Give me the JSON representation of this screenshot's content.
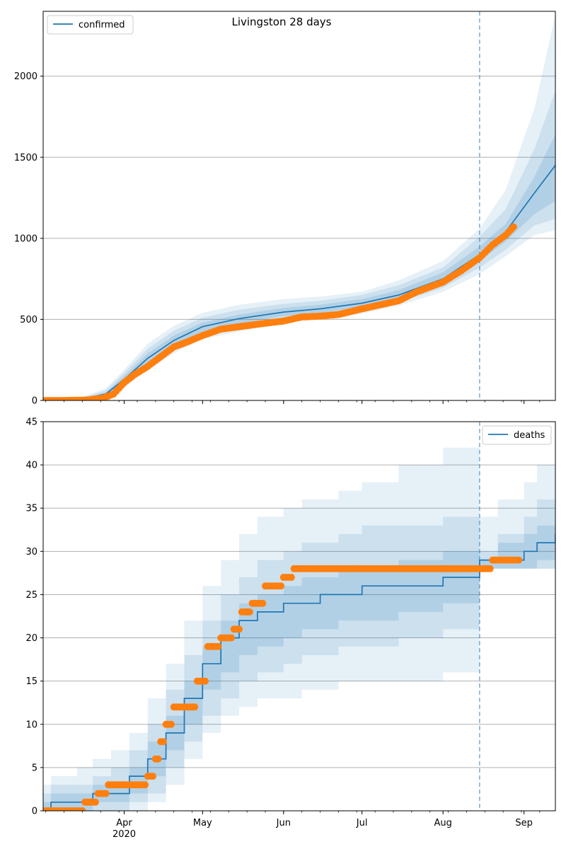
{
  "title": "Livingston 28 days",
  "colors": {
    "model": "#1f77b4",
    "observed": "#ff7f0e",
    "grid": "#b0b0b0",
    "band": "#1f77b4"
  },
  "x_axis": {
    "type": "date",
    "range": [
      "2020-03-01",
      "2020-09-13"
    ],
    "ticks": [
      {
        "date": "2020-04-01",
        "label": "Apr"
      },
      {
        "date": "2020-05-01",
        "label": "May"
      },
      {
        "date": "2020-06-01",
        "label": "Jun"
      },
      {
        "date": "2020-07-01",
        "label": "Jul"
      },
      {
        "date": "2020-08-01",
        "label": "Aug"
      },
      {
        "date": "2020-09-01",
        "label": "Sep"
      }
    ],
    "year_label": "2020",
    "forecast_start": "2020-08-15"
  },
  "chart_data": [
    {
      "type": "line",
      "legend": "confirmed",
      "legend_position": "top-left",
      "ylim": [
        0,
        2400
      ],
      "yticks": [
        0,
        500,
        1000,
        1500,
        2000
      ],
      "grid": true,
      "model": {
        "x": [
          "2020-03-01",
          "2020-03-15",
          "2020-03-25",
          "2020-04-01",
          "2020-04-10",
          "2020-04-20",
          "2020-05-01",
          "2020-05-15",
          "2020-06-01",
          "2020-06-15",
          "2020-07-01",
          "2020-07-15",
          "2020-08-01",
          "2020-08-15",
          "2020-08-25",
          "2020-09-05",
          "2020-09-13"
        ],
        "median": [
          0,
          5,
          40,
          130,
          260,
          370,
          455,
          505,
          545,
          565,
          600,
          650,
          750,
          900,
          1040,
          1280,
          1450
        ],
        "band_50": [
          [
            0,
            3,
            30,
            110,
            230,
            340,
            425,
            475,
            520,
            540,
            575,
            625,
            720,
            860,
            980,
            1150,
            1230
          ],
          [
            0,
            8,
            50,
            150,
            290,
            400,
            480,
            530,
            570,
            590,
            625,
            680,
            790,
            950,
            1090,
            1380,
            1640
          ]
        ],
        "band_80": [
          [
            0,
            2,
            22,
            95,
            205,
            315,
            400,
            450,
            500,
            520,
            555,
            605,
            695,
            820,
            930,
            1080,
            1120
          ],
          [
            0,
            11,
            62,
            170,
            320,
            430,
            510,
            560,
            595,
            615,
            650,
            710,
            820,
            1010,
            1180,
            1550,
            1910
          ]
        ],
        "band_95": [
          [
            0,
            1,
            15,
            80,
            185,
            290,
            380,
            425,
            480,
            500,
            535,
            585,
            670,
            780,
            890,
            1020,
            1050
          ],
          [
            0,
            15,
            75,
            190,
            350,
            460,
            540,
            590,
            625,
            640,
            670,
            740,
            860,
            1060,
            1300,
            1800,
            2380
          ]
        ]
      },
      "observed": {
        "x": [
          "2020-03-01",
          "2020-03-10",
          "2020-03-18",
          "2020-03-24",
          "2020-03-28",
          "2020-04-01",
          "2020-04-05",
          "2020-04-10",
          "2020-04-15",
          "2020-04-20",
          "2020-04-25",
          "2020-05-01",
          "2020-05-08",
          "2020-05-15",
          "2020-05-22",
          "2020-06-01",
          "2020-06-08",
          "2020-06-15",
          "2020-06-22",
          "2020-07-01",
          "2020-07-08",
          "2020-07-15",
          "2020-07-22",
          "2020-08-01",
          "2020-08-08",
          "2020-08-15",
          "2020-08-20",
          "2020-08-25",
          "2020-08-28"
        ],
        "y": [
          0,
          0,
          3,
          15,
          40,
          110,
          160,
          210,
          270,
          330,
          360,
          400,
          440,
          455,
          470,
          490,
          515,
          520,
          530,
          565,
          590,
          615,
          670,
          730,
          800,
          880,
          960,
          1020,
          1070
        ]
      }
    },
    {
      "type": "line",
      "legend": "deaths",
      "legend_position": "top-right",
      "ylim": [
        0,
        45
      ],
      "yticks": [
        0,
        5,
        10,
        15,
        20,
        25,
        30,
        35,
        40,
        45
      ],
      "grid": true,
      "model": {
        "x": [
          "2020-03-01",
          "2020-03-04",
          "2020-03-14",
          "2020-03-20",
          "2020-03-27",
          "2020-04-03",
          "2020-04-10",
          "2020-04-17",
          "2020-04-24",
          "2020-05-01",
          "2020-05-08",
          "2020-05-15",
          "2020-05-22",
          "2020-06-01",
          "2020-06-08",
          "2020-06-15",
          "2020-06-22",
          "2020-07-01",
          "2020-07-15",
          "2020-08-01",
          "2020-08-15",
          "2020-08-22",
          "2020-09-01",
          "2020-09-06",
          "2020-09-13"
        ],
        "median": [
          0,
          1,
          1,
          2,
          2,
          4,
          6,
          9,
          13,
          17,
          20,
          22,
          23,
          24,
          24,
          25,
          25,
          26,
          26,
          27,
          29,
          29,
          30,
          31,
          32
        ],
        "band_50": [
          [
            0,
            0,
            0,
            1,
            1,
            2,
            4,
            7,
            10,
            14,
            16,
            18,
            19,
            20,
            21,
            21,
            22,
            22,
            23,
            24,
            28,
            28,
            28,
            29,
            29
          ],
          [
            1,
            2,
            2,
            3,
            3,
            5,
            8,
            11,
            15,
            19,
            22,
            24,
            25,
            26,
            27,
            27,
            28,
            28,
            29,
            30,
            29,
            31,
            32,
            33,
            34
          ]
        ],
        "band_80": [
          [
            0,
            0,
            0,
            0,
            0,
            1,
            2,
            5,
            8,
            11,
            13,
            15,
            16,
            17,
            18,
            18,
            19,
            19,
            20,
            21,
            28,
            28,
            28,
            28,
            28
          ],
          [
            2,
            3,
            3,
            4,
            5,
            7,
            10,
            14,
            18,
            22,
            25,
            27,
            29,
            30,
            31,
            31,
            32,
            33,
            33,
            34,
            30,
            32,
            34,
            36,
            38
          ]
        ],
        "band_95": [
          [
            0,
            0,
            0,
            0,
            0,
            0,
            1,
            3,
            6,
            9,
            11,
            12,
            13,
            13,
            14,
            14,
            15,
            15,
            15,
            16,
            28,
            28,
            28,
            28,
            28
          ],
          [
            3,
            4,
            5,
            6,
            7,
            9,
            13,
            17,
            22,
            26,
            29,
            32,
            34,
            35,
            36,
            36,
            37,
            38,
            40,
            42,
            34,
            36,
            38,
            40,
            43
          ]
        ]
      },
      "observed": {
        "x": [
          "2020-03-01",
          "2020-03-15",
          "2020-03-17",
          "2020-03-22",
          "2020-03-26",
          "2020-04-01",
          "2020-04-06",
          "2020-04-10",
          "2020-04-13",
          "2020-04-15",
          "2020-04-17",
          "2020-04-20",
          "2020-04-24",
          "2020-04-29",
          "2020-05-03",
          "2020-05-08",
          "2020-05-13",
          "2020-05-16",
          "2020-05-20",
          "2020-05-25",
          "2020-06-01",
          "2020-06-05",
          "2020-06-15",
          "2020-07-01",
          "2020-07-15",
          "2020-08-01",
          "2020-08-15",
          "2020-08-20",
          "2020-08-25",
          "2020-08-30"
        ],
        "y": [
          0,
          0,
          1,
          2,
          3,
          3,
          3,
          4,
          6,
          8,
          10,
          12,
          12,
          15,
          19,
          20,
          21,
          23,
          24,
          26,
          27,
          28,
          28,
          28,
          28,
          28,
          28,
          29,
          29,
          29
        ]
      }
    }
  ]
}
